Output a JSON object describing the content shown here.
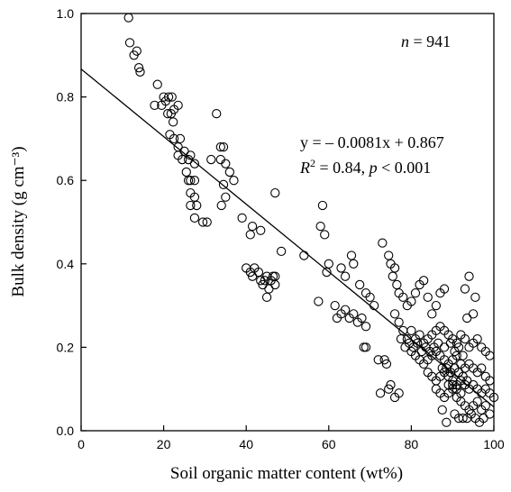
{
  "chart_data": {
    "type": "scatter",
    "xlabel": "Soil organic matter content (wt%)",
    "ylabel": "Bulk density (g cm⁻³)",
    "xlim": [
      0,
      100
    ],
    "ylim": [
      0.0,
      1.0
    ],
    "x_ticks": [
      "0",
      "20",
      "40",
      "60",
      "80",
      "100"
    ],
    "y_ticks": [
      "0.0",
      "0.2",
      "0.4",
      "0.6",
      "0.8",
      "1.0"
    ],
    "grid": false,
    "legend": "none",
    "annotations": {
      "n_label": "n",
      "n_value": " = 941",
      "equation": "y = – 0.0081x + 0.867",
      "r2_label": "R",
      "r2_sup": "2",
      "r2_value": " = 0.84, ",
      "p_label": "p",
      "p_value": " < 0.001"
    },
    "fit_line": {
      "slope": -0.0081,
      "intercept": 0.867,
      "x_range": [
        0,
        100
      ]
    },
    "series": [
      {
        "marker": "open-circle",
        "points": [
          [
            11.5,
            0.99
          ],
          [
            11.8,
            0.93
          ],
          [
            12.8,
            0.9
          ],
          [
            13.5,
            0.91
          ],
          [
            14.0,
            0.87
          ],
          [
            14.3,
            0.86
          ],
          [
            18.5,
            0.83
          ],
          [
            17.8,
            0.78
          ],
          [
            19.5,
            0.78
          ],
          [
            20.0,
            0.8
          ],
          [
            20.5,
            0.79
          ],
          [
            21.2,
            0.8
          ],
          [
            22.0,
            0.8
          ],
          [
            21.0,
            0.76
          ],
          [
            21.8,
            0.76
          ],
          [
            22.5,
            0.77
          ],
          [
            23.5,
            0.78
          ],
          [
            22.3,
            0.74
          ],
          [
            21.5,
            0.71
          ],
          [
            22.5,
            0.7
          ],
          [
            23.5,
            0.68
          ],
          [
            24.0,
            0.7
          ],
          [
            23.5,
            0.66
          ],
          [
            25.0,
            0.67
          ],
          [
            26.5,
            0.66
          ],
          [
            24.5,
            0.65
          ],
          [
            26.0,
            0.65
          ],
          [
            25.5,
            0.62
          ],
          [
            26.0,
            0.6
          ],
          [
            27.5,
            0.64
          ],
          [
            26.5,
            0.6
          ],
          [
            27.5,
            0.6
          ],
          [
            26.5,
            0.57
          ],
          [
            27.5,
            0.56
          ],
          [
            26.5,
            0.54
          ],
          [
            28.0,
            0.54
          ],
          [
            27.5,
            0.51
          ],
          [
            29.5,
            0.5
          ],
          [
            30.5,
            0.5
          ],
          [
            32.8,
            0.76
          ],
          [
            31.5,
            0.65
          ],
          [
            33.8,
            0.68
          ],
          [
            34.5,
            0.68
          ],
          [
            33.8,
            0.65
          ],
          [
            35.0,
            0.64
          ],
          [
            36.0,
            0.62
          ],
          [
            34.5,
            0.59
          ],
          [
            35.0,
            0.56
          ],
          [
            34.0,
            0.54
          ],
          [
            37.0,
            0.6
          ],
          [
            39.0,
            0.51
          ],
          [
            41.5,
            0.49
          ],
          [
            41.0,
            0.47
          ],
          [
            43.5,
            0.48
          ],
          [
            47.0,
            0.57
          ],
          [
            48.5,
            0.43
          ],
          [
            40.0,
            0.39
          ],
          [
            41.0,
            0.38
          ],
          [
            42.0,
            0.39
          ],
          [
            41.5,
            0.37
          ],
          [
            43.0,
            0.38
          ],
          [
            43.5,
            0.36
          ],
          [
            44.0,
            0.35
          ],
          [
            44.5,
            0.36
          ],
          [
            45.0,
            0.37
          ],
          [
            46.0,
            0.36
          ],
          [
            45.5,
            0.34
          ],
          [
            46.5,
            0.37
          ],
          [
            47.0,
            0.37
          ],
          [
            45.0,
            0.32
          ],
          [
            47.0,
            0.35
          ],
          [
            54.0,
            0.42
          ],
          [
            57.5,
            0.31
          ],
          [
            58.0,
            0.49
          ],
          [
            58.5,
            0.54
          ],
          [
            59.0,
            0.47
          ],
          [
            59.5,
            0.38
          ],
          [
            60.0,
            0.4
          ],
          [
            63.0,
            0.39
          ],
          [
            64.0,
            0.37
          ],
          [
            65.5,
            0.42
          ],
          [
            66.0,
            0.4
          ],
          [
            67.5,
            0.35
          ],
          [
            69.0,
            0.33
          ],
          [
            61.5,
            0.3
          ],
          [
            62.0,
            0.27
          ],
          [
            63.0,
            0.28
          ],
          [
            64.0,
            0.29
          ],
          [
            65.0,
            0.27
          ],
          [
            66.0,
            0.28
          ],
          [
            67.0,
            0.26
          ],
          [
            68.0,
            0.27
          ],
          [
            69.0,
            0.25
          ],
          [
            70.0,
            0.32
          ],
          [
            71.0,
            0.3
          ],
          [
            68.5,
            0.2
          ],
          [
            69.0,
            0.2
          ],
          [
            72.0,
            0.17
          ],
          [
            73.0,
            0.45
          ],
          [
            73.5,
            0.17
          ],
          [
            74.0,
            0.16
          ],
          [
            74.5,
            0.1
          ],
          [
            75.0,
            0.11
          ],
          [
            72.5,
            0.09
          ],
          [
            76.0,
            0.08
          ],
          [
            77.0,
            0.09
          ],
          [
            74.5,
            0.42
          ],
          [
            75.0,
            0.4
          ],
          [
            76.0,
            0.39
          ],
          [
            75.5,
            0.37
          ],
          [
            76.5,
            0.35
          ],
          [
            77.0,
            0.33
          ],
          [
            78.0,
            0.32
          ],
          [
            79.0,
            0.3
          ],
          [
            80.0,
            0.31
          ],
          [
            81.0,
            0.33
          ],
          [
            82.0,
            0.35
          ],
          [
            83.0,
            0.36
          ],
          [
            84.0,
            0.32
          ],
          [
            85.0,
            0.28
          ],
          [
            86.0,
            0.3
          ],
          [
            87.0,
            0.33
          ],
          [
            88.0,
            0.34
          ],
          [
            94.0,
            0.37
          ],
          [
            93.5,
            0.27
          ],
          [
            93.0,
            0.34
          ],
          [
            95.5,
            0.32
          ],
          [
            95.0,
            0.28
          ],
          [
            76.0,
            0.28
          ],
          [
            77.0,
            0.26
          ],
          [
            78.0,
            0.24
          ],
          [
            79.0,
            0.22
          ],
          [
            80.0,
            0.24
          ],
          [
            81.0,
            0.22
          ],
          [
            82.0,
            0.23
          ],
          [
            83.0,
            0.21
          ],
          [
            84.0,
            0.22
          ],
          [
            85.0,
            0.23
          ],
          [
            86.0,
            0.24
          ],
          [
            87.0,
            0.25
          ],
          [
            88.0,
            0.24
          ],
          [
            89.0,
            0.23
          ],
          [
            90.0,
            0.22
          ],
          [
            91.0,
            0.21
          ],
          [
            92.0,
            0.23
          ],
          [
            93.0,
            0.22
          ],
          [
            94.0,
            0.2
          ],
          [
            95.0,
            0.21
          ],
          [
            96.0,
            0.22
          ],
          [
            97.0,
            0.2
          ],
          [
            98.0,
            0.19
          ],
          [
            99.0,
            0.18
          ],
          [
            80.0,
            0.19
          ],
          [
            81.0,
            0.18
          ],
          [
            82.0,
            0.17
          ],
          [
            83.0,
            0.16
          ],
          [
            84.0,
            0.17
          ],
          [
            85.0,
            0.18
          ],
          [
            86.0,
            0.19
          ],
          [
            87.0,
            0.18
          ],
          [
            88.0,
            0.17
          ],
          [
            89.0,
            0.16
          ],
          [
            90.0,
            0.17
          ],
          [
            91.0,
            0.18
          ],
          [
            92.0,
            0.16
          ],
          [
            93.0,
            0.15
          ],
          [
            94.0,
            0.16
          ],
          [
            95.0,
            0.15
          ],
          [
            96.0,
            0.14
          ],
          [
            97.0,
            0.15
          ],
          [
            98.0,
            0.13
          ],
          [
            99.0,
            0.12
          ],
          [
            84.0,
            0.14
          ],
          [
            85.0,
            0.13
          ],
          [
            86.0,
            0.12
          ],
          [
            87.0,
            0.13
          ],
          [
            88.0,
            0.14
          ],
          [
            89.0,
            0.13
          ],
          [
            90.0,
            0.12
          ],
          [
            91.0,
            0.11
          ],
          [
            92.0,
            0.12
          ],
          [
            93.0,
            0.11
          ],
          [
            94.0,
            0.1
          ],
          [
            95.0,
            0.11
          ],
          [
            96.0,
            0.1
          ],
          [
            97.0,
            0.09
          ],
          [
            98.0,
            0.1
          ],
          [
            99.0,
            0.09
          ],
          [
            100.0,
            0.08
          ],
          [
            86.0,
            0.1
          ],
          [
            87.0,
            0.09
          ],
          [
            88.0,
            0.08
          ],
          [
            89.0,
            0.09
          ],
          [
            90.0,
            0.1
          ],
          [
            91.0,
            0.08
          ],
          [
            92.0,
            0.07
          ],
          [
            93.0,
            0.06
          ],
          [
            94.0,
            0.05
          ],
          [
            95.0,
            0.06
          ],
          [
            96.0,
            0.07
          ],
          [
            97.0,
            0.05
          ],
          [
            98.0,
            0.06
          ],
          [
            99.0,
            0.04
          ],
          [
            90.5,
            0.04
          ],
          [
            91.5,
            0.03
          ],
          [
            92.5,
            0.03
          ],
          [
            93.5,
            0.03
          ],
          [
            94.5,
            0.04
          ],
          [
            95.5,
            0.03
          ],
          [
            96.5,
            0.02
          ],
          [
            97.5,
            0.03
          ],
          [
            88.5,
            0.02
          ],
          [
            87.5,
            0.05
          ],
          [
            88.0,
            0.2
          ],
          [
            89.5,
            0.21
          ],
          [
            90.5,
            0.19
          ],
          [
            91.5,
            0.2
          ],
          [
            92.5,
            0.18
          ],
          [
            87.5,
            0.15
          ],
          [
            88.5,
            0.15
          ],
          [
            89.5,
            0.14
          ],
          [
            90.5,
            0.15
          ],
          [
            91.5,
            0.14
          ],
          [
            92.5,
            0.13
          ],
          [
            93.5,
            0.12
          ],
          [
            89.0,
            0.11
          ],
          [
            90.0,
            0.11
          ],
          [
            91.0,
            0.1
          ],
          [
            92.0,
            0.09
          ],
          [
            78.5,
            0.2
          ],
          [
            79.5,
            0.21
          ],
          [
            77.5,
            0.22
          ],
          [
            80.5,
            0.2
          ],
          [
            81.5,
            0.21
          ],
          [
            82.5,
            0.19
          ],
          [
            83.5,
            0.2
          ],
          [
            84.5,
            0.19
          ],
          [
            85.5,
            0.2
          ],
          [
            86.5,
            0.21
          ]
        ]
      }
    ]
  }
}
